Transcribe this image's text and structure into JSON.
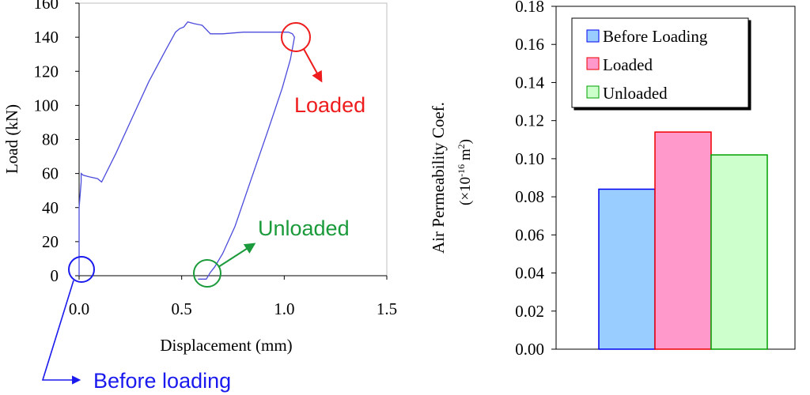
{
  "chart_data": [
    {
      "type": "line",
      "xlabel": "Displacement  (mm)",
      "ylabel": "Load (kN)",
      "xlim": [
        0,
        1.5
      ],
      "ylim": [
        0,
        160
      ],
      "x_ticks": [
        "0.0",
        "0.5",
        "1.0",
        "1.5"
      ],
      "y_ticks": [
        "0",
        "20",
        "40",
        "60",
        "80",
        "100",
        "120",
        "140",
        "160"
      ],
      "series": [
        {
          "name": "load-displacement curve",
          "color": "#4b4bdc",
          "x": [
            0.0,
            0.0,
            0.0,
            0.01,
            0.01,
            0.02,
            0.05,
            0.09,
            0.11,
            0.18,
            0.26,
            0.34,
            0.42,
            0.47,
            0.49,
            0.51,
            0.53,
            0.56,
            0.6,
            0.64,
            0.7,
            0.8,
            0.9,
            0.99,
            1.02,
            1.04,
            1.05,
            1.03,
            0.99,
            0.92,
            0.84,
            0.76,
            0.7,
            0.66,
            0.64,
            0.62,
            0.58
          ],
          "y": [
            0,
            20,
            40,
            55,
            60,
            59,
            58,
            57,
            55,
            72,
            93,
            114,
            132,
            143,
            145,
            146,
            149,
            148,
            147,
            142,
            142,
            143,
            143,
            143,
            143,
            142,
            140,
            127,
            110,
            85,
            57,
            29,
            13,
            5,
            2,
            -2,
            -2
          ]
        }
      ],
      "annotations": [
        {
          "label": "Loaded",
          "x": 1.05,
          "y": 142,
          "color": "#ee1c1c"
        },
        {
          "label": "Unloaded",
          "x": 0.64,
          "y": 1,
          "color": "#1a9a3a"
        },
        {
          "label": "Before loading",
          "x": 0.0,
          "y": 3,
          "color": "#1a1aee"
        }
      ]
    },
    {
      "type": "bar",
      "ylabel": "Air Permeability Coef.",
      "ylabel_sub_prefix": "(×10",
      "ylabel_sub_exp": "-16",
      "ylabel_sub_unit": " m",
      "ylabel_sub_exp2": "2",
      "ylabel_sub_suffix": ")",
      "ylim": [
        0,
        0.18
      ],
      "y_ticks": [
        "0.00",
        "0.02",
        "0.04",
        "0.06",
        "0.08",
        "0.10",
        "0.12",
        "0.14",
        "0.16",
        "0.18"
      ],
      "categories": [
        "Before Loading",
        "Loaded",
        "Unloaded"
      ],
      "values": [
        0.084,
        0.114,
        0.102
      ],
      "colors": [
        "#99ccff",
        "#ff99cc",
        "#ccffcc"
      ],
      "edge_colors": [
        "#0000ee",
        "#ee0000",
        "#00a000"
      ],
      "legend": [
        "Before Loading",
        "Loaded",
        "Unloaded"
      ],
      "legend_position": "top-right"
    }
  ]
}
